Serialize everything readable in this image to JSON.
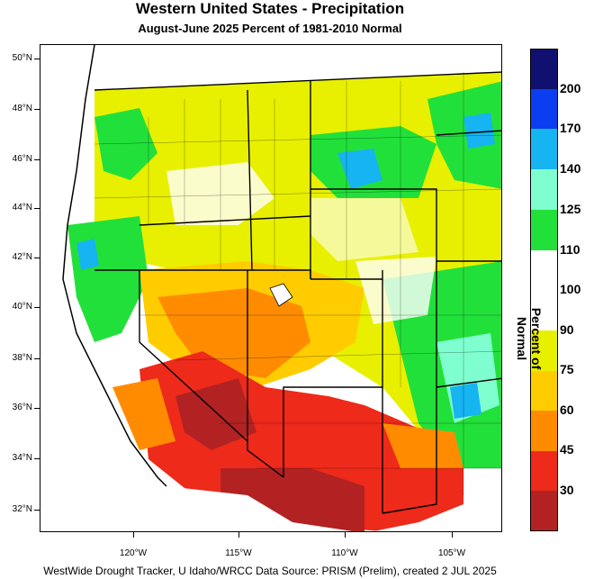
{
  "title": "Western United States - Precipitation",
  "subtitle": "August-June 2025  Percent of 1981-2010 Normal",
  "footer": "WestWide Drought Tracker, U Idaho/WRCC Data Source: PRISM (Prelim), created  2 JUL 2025",
  "legend_title": "Percent of Normal",
  "lat_labels": [
    "50°N",
    "48°N",
    "46°N",
    "44°N",
    "42°N",
    "40°N",
    "38°N",
    "36°N",
    "34°N",
    "32°N"
  ],
  "lon_labels": [
    "120°W",
    "115°W",
    "110°W",
    "105°W"
  ],
  "legend": [
    {
      "label": "30",
      "color": "#b22222"
    },
    {
      "label": "45",
      "color": "#ee2a1a"
    },
    {
      "label": "60",
      "color": "#ff8c00"
    },
    {
      "label": "75",
      "color": "#ffcc00"
    },
    {
      "label": "90",
      "color": "#e8f000"
    },
    {
      "label": "100",
      "color": "#ffffff"
    },
    {
      "label": "110",
      "color": "#ffffff"
    },
    {
      "label": "125",
      "color": "#22e03a"
    },
    {
      "label": "140",
      "color": "#7fffd0"
    },
    {
      "label": "170",
      "color": "#16b4f0"
    },
    {
      "label": "200",
      "color": "#0a3ef0"
    },
    {
      "label": "",
      "color": "#101070"
    }
  ],
  "colors": {
    "lt30": "#b22222",
    "p30_45": "#ee2a1a",
    "p45_60": "#ff8c00",
    "p60_75": "#ffcc00",
    "p75_90": "#e8f000",
    "p90_110": "#ffffff",
    "p110_125": "#22e03a",
    "p125_140": "#7fffd0",
    "p140_170": "#16b4f0",
    "p170_200": "#0a3ef0",
    "gt200": "#101070"
  }
}
